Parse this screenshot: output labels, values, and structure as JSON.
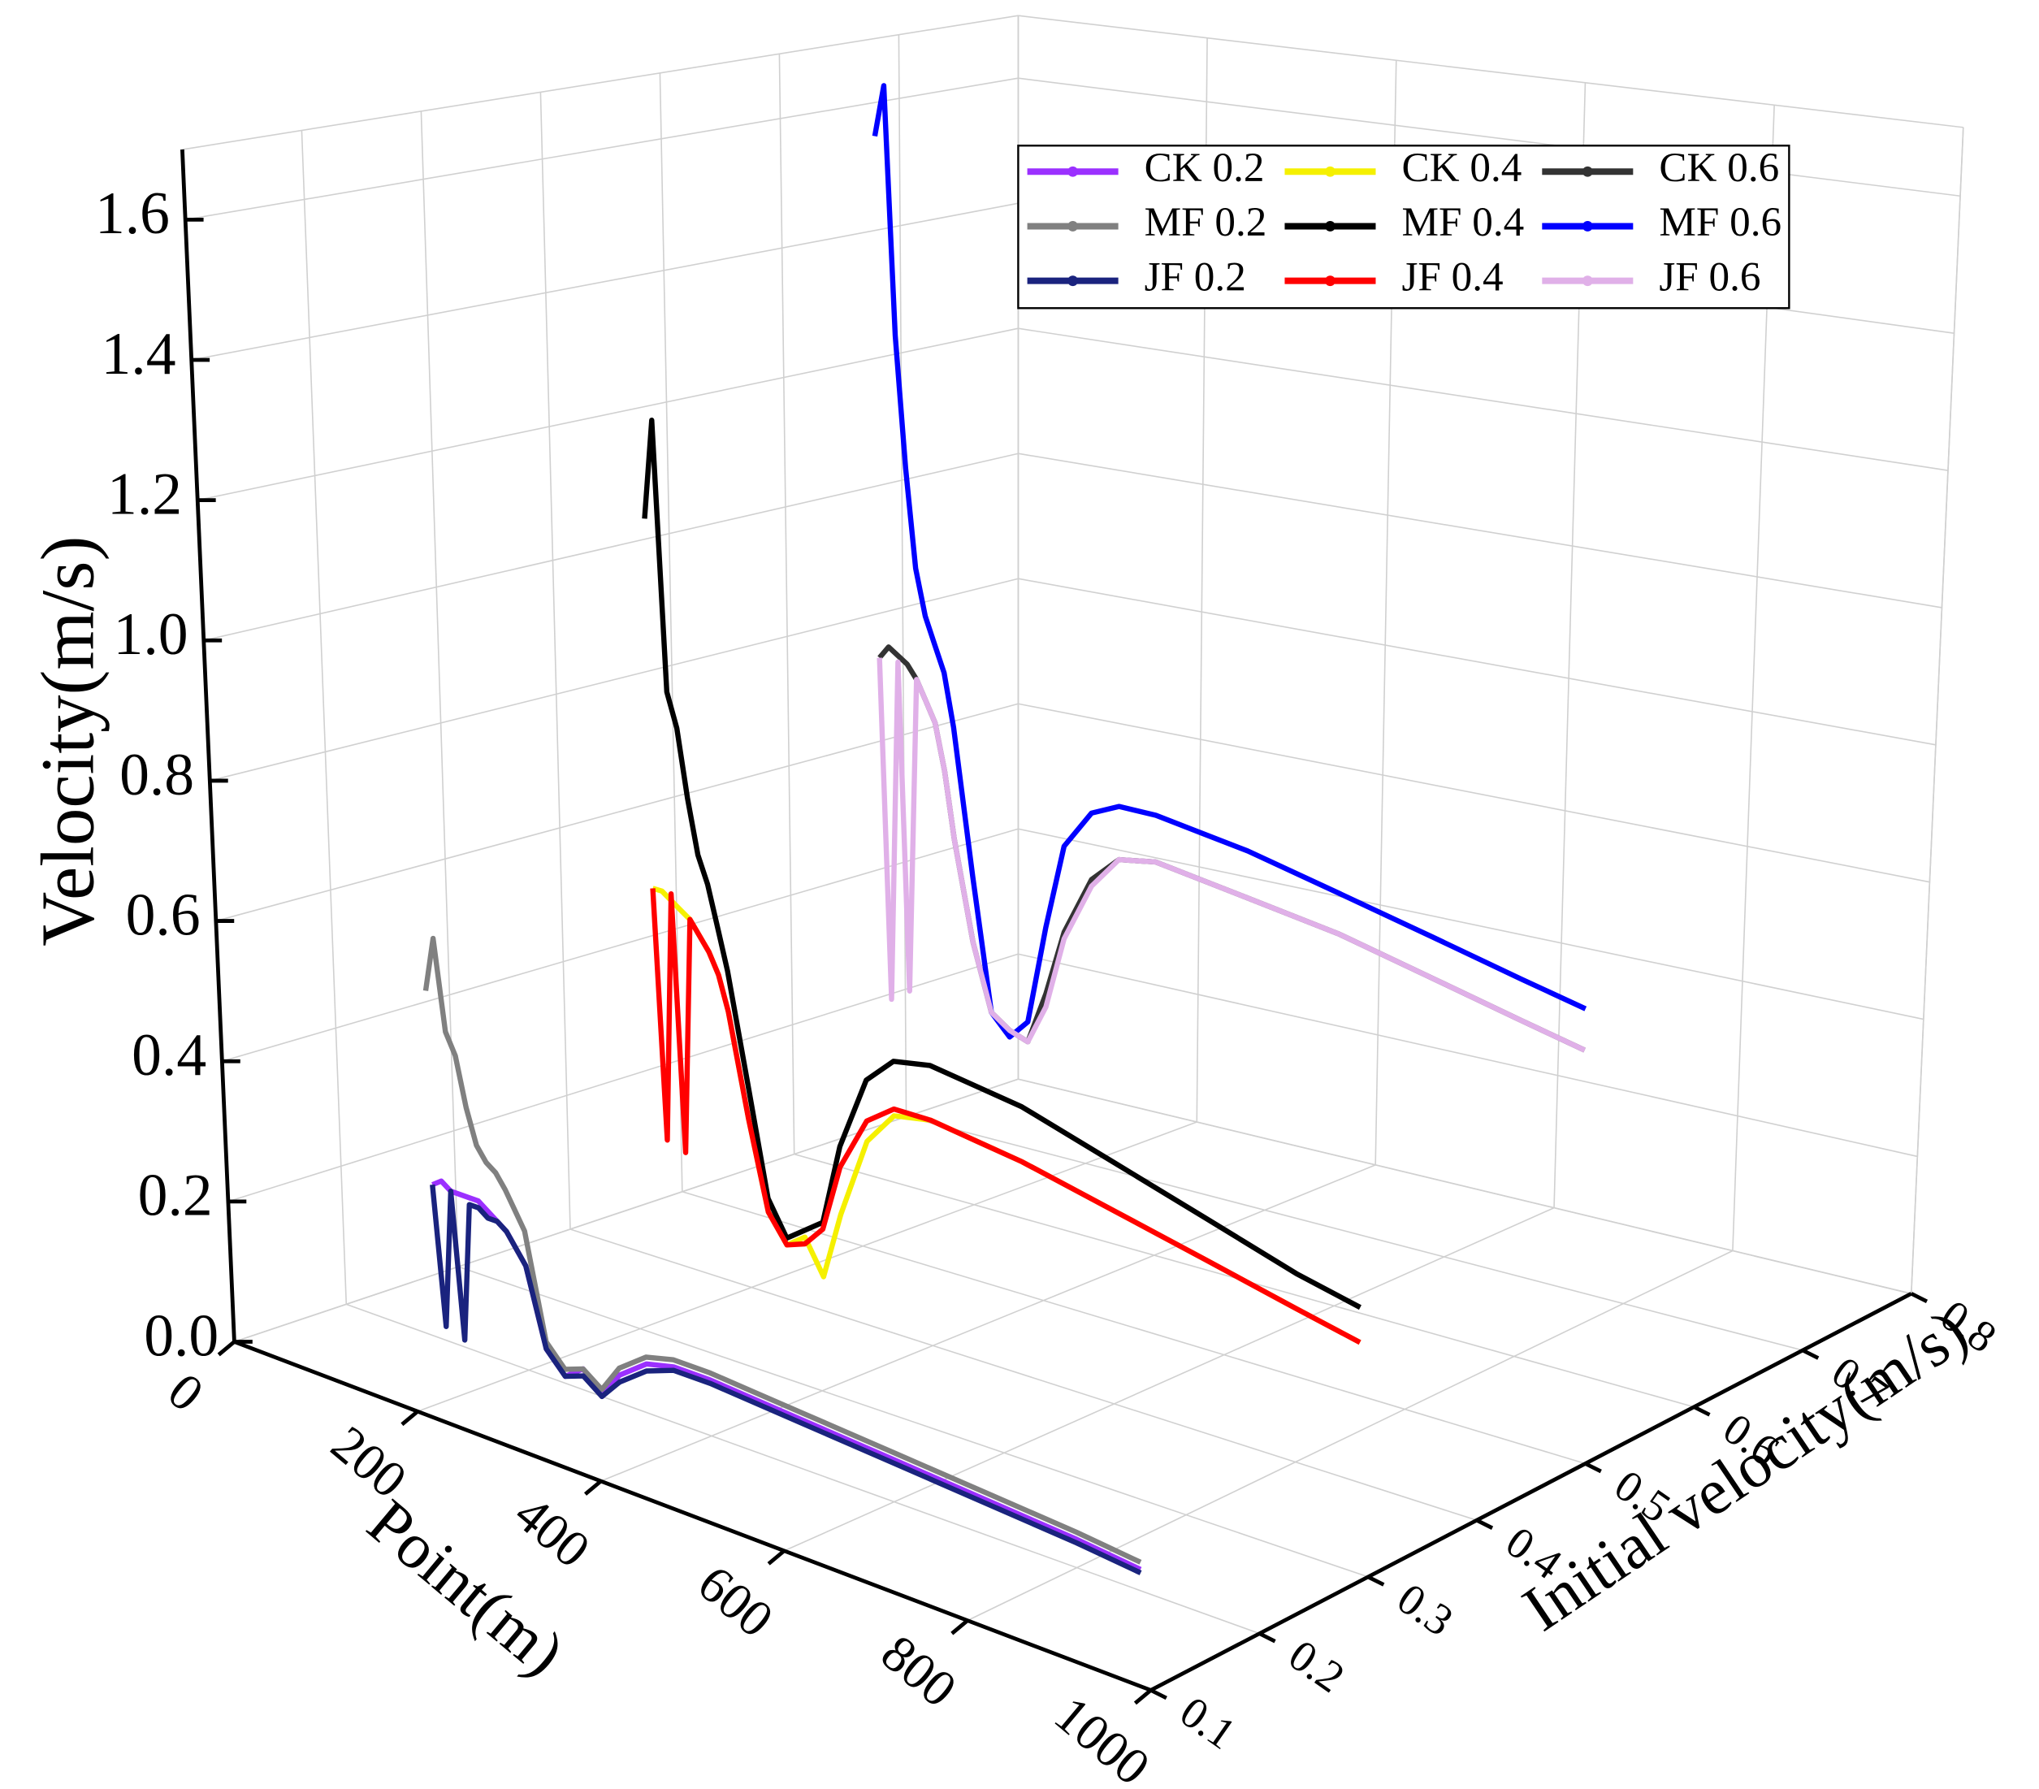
{
  "chart_data": {
    "type": "line3d",
    "xlabel": "Point(m)",
    "ylabel": "Initial velocity(m/s)",
    "zlabel": "Velocity(m/s)",
    "xlim": [
      0,
      1000
    ],
    "xticks": [
      0,
      200,
      400,
      600,
      800,
      1000
    ],
    "ylim": [
      0.1,
      0.8
    ],
    "yticks": [
      0.1,
      0.2,
      0.3,
      0.4,
      0.5,
      0.6,
      0.7,
      0.8
    ],
    "zlim": [
      0,
      1.7
    ],
    "zticks": [
      {
        "value": 0,
        "label": "0.0"
      },
      0.2,
      0.4,
      0.6,
      0.8,
      {
        "value": 1,
        "label": "1.0"
      },
      1.2,
      1.4,
      1.6
    ],
    "grid": true,
    "legend": "top-right",
    "x": [
      100,
      110,
      120,
      130,
      140,
      150,
      160,
      170,
      180,
      200,
      220,
      240,
      260,
      280,
      300,
      330,
      360,
      400,
      450,
      500,
      600,
      700,
      800,
      870
    ],
    "series": [
      {
        "name": "CK 0.2",
        "color": "#9b30ff",
        "y": 0.2,
        "values": [
          0.22,
          0.23,
          0.22,
          0.22,
          0.22,
          0.22,
          0.21,
          0.2,
          0.19,
          0.15,
          0.04,
          0.01,
          0.03,
          0.0,
          0.04,
          0.07,
          0.08,
          0.08,
          0.075,
          0.07,
          0.06,
          0.05,
          0.04,
          0.03
        ]
      },
      {
        "name": "CK 0.4",
        "color": "#f5f000",
        "y": 0.4,
        "values": [
          0.55,
          0.55,
          0.54,
          0.53,
          0.52,
          0.5,
          0.48,
          0.45,
          0.4,
          0.25,
          0.12,
          0.08,
          0.1,
          0.05,
          0.15,
          0.27,
          0.32,
          0.33,
          0.32,
          0.31,
          0.28,
          0.25,
          0.22,
          0.2
        ]
      },
      {
        "name": "CK 0.6",
        "color": "#333333",
        "y": 0.6,
        "values": [
          0.8,
          0.82,
          0.81,
          0.8,
          0.78,
          0.75,
          0.72,
          0.65,
          0.55,
          0.4,
          0.3,
          0.28,
          0.27,
          0.35,
          0.45,
          0.54,
          0.58,
          0.59,
          0.58,
          0.57,
          0.55,
          0.52,
          0.49,
          0.47
        ]
      },
      {
        "name": "MF 0.2",
        "color": "#808080",
        "y": 0.2,
        "values": [
          0.5,
          0.58,
          0.45,
          0.42,
          0.35,
          0.3,
          0.28,
          0.27,
          0.25,
          0.2,
          0.05,
          0.02,
          0.03,
          0.01,
          0.05,
          0.08,
          0.09,
          0.09,
          0.085,
          0.08,
          0.07,
          0.06,
          0.05,
          0.04
        ]
      },
      {
        "name": "MF 0.4",
        "color": "#000000",
        "y": 0.4,
        "values": [
          1.1,
          1.25,
          0.85,
          0.8,
          0.7,
          0.62,
          0.58,
          0.52,
          0.46,
          0.3,
          0.14,
          0.09,
          0.11,
          0.13,
          0.25,
          0.36,
          0.4,
          0.41,
          0.4,
          0.39,
          0.35,
          0.31,
          0.27,
          0.25
        ]
      },
      {
        "name": "MF 0.6",
        "color": "#0000ff",
        "y": 0.6,
        "values": [
          1.6,
          1.68,
          1.3,
          1.1,
          0.95,
          0.88,
          0.84,
          0.8,
          0.72,
          0.5,
          0.3,
          0.27,
          0.3,
          0.45,
          0.58,
          0.64,
          0.66,
          0.66,
          0.65,
          0.64,
          0.61,
          0.58,
          0.55,
          0.53
        ]
      },
      {
        "name": "JF 0.2",
        "color": "#1a237e",
        "y": 0.2,
        "values": [
          0.22,
          0.02,
          0.22,
          0.01,
          0.21,
          0.21,
          0.2,
          0.2,
          0.19,
          0.15,
          0.04,
          0.01,
          0.02,
          0.0,
          0.03,
          0.06,
          0.075,
          0.075,
          0.07,
          0.065,
          0.055,
          0.045,
          0.035,
          0.025
        ]
      },
      {
        "name": "JF 0.4",
        "color": "#ff0000",
        "y": 0.4,
        "values": [
          0.55,
          0.18,
          0.55,
          0.17,
          0.52,
          0.5,
          0.48,
          0.45,
          0.4,
          0.25,
          0.12,
          0.08,
          0.09,
          0.12,
          0.22,
          0.3,
          0.33,
          0.33,
          0.32,
          0.31,
          0.28,
          0.25,
          0.22,
          0.2
        ]
      },
      {
        "name": "JF 0.6",
        "color": "#e0b0e8",
        "y": 0.6,
        "values": [
          0.8,
          0.28,
          0.8,
          0.3,
          0.78,
          0.75,
          0.72,
          0.65,
          0.55,
          0.4,
          0.3,
          0.28,
          0.27,
          0.33,
          0.44,
          0.53,
          0.58,
          0.59,
          0.58,
          0.57,
          0.55,
          0.52,
          0.49,
          0.47
        ]
      }
    ]
  }
}
